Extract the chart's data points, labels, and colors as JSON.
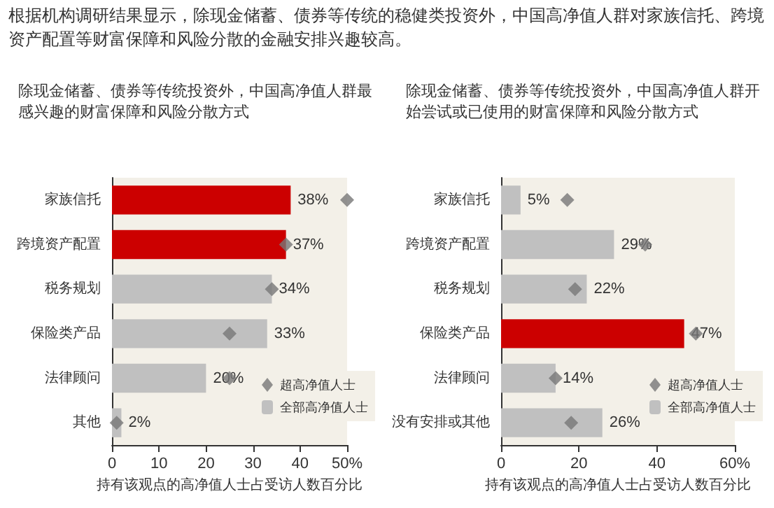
{
  "chart_data": [
    {
      "type": "bar",
      "orientation": "horizontal",
      "title": "除现金储蓄、债券等传统投资外，中国高净值人群最感兴趣的财富保障和风险分散方式",
      "annotations": [
        "根据机构调研结果显示，除现金储蓄、债券等传统的稳健类投资外，中国高净值人群对家族信托、跨境资产配置等财富保障和风险分散的金融安排兴趣较高。"
      ],
      "xlabel": "持有该观点的高净值人士占受访人数百分比",
      "categories": [
        "家族信托",
        "跨境资产配置",
        "税务规划",
        "保险类产品",
        "法律顾问",
        "其他"
      ],
      "series": [
        {
          "name": "超高净值人士",
          "type": "scatter",
          "color": "#777777",
          "x": [
            "家族信托",
            "跨境资产配置",
            "税务规划",
            "保险类产品",
            "法律顾问",
            "其他"
          ],
          "values": [
            50,
            37,
            34,
            25,
            25,
            1
          ]
        },
        {
          "name": "全部高净值人士",
          "type": "bar",
          "color": "#c0c0c0",
          "colors": [
            "#cc0000",
            "#cc0000",
            "#c0c0c0",
            "#c0c0c0",
            "#c0c0c0",
            "#c0c0c0"
          ],
          "values": [
            38,
            37,
            34,
            33,
            20,
            2
          ],
          "value_labels": [
            "38%",
            "37%",
            "34%",
            "33%",
            "20%",
            "2%"
          ]
        }
      ],
      "marker": "diamond",
      "xlim": [
        0,
        50
      ],
      "xticks": [
        0,
        10,
        20,
        30,
        40,
        {
          "value": 50,
          "label": "50%"
        }
      ],
      "grid": false,
      "legend": "bottom right"
    },
    {
      "type": "bar",
      "orientation": "horizontal",
      "title": "除现金储蓄、债券等传统投资外，中国高净值人群开始尝试或已使用的财富保障和风险分散方式",
      "xlabel": "持有该观点的高净值人士占受访人数百分比",
      "categories": [
        "家族信托",
        "跨境资产配置",
        "税务规划",
        "保险类产品",
        "法律顾问",
        "没有安排或其他"
      ],
      "series": [
        {
          "name": "超高净值人士",
          "type": "scatter",
          "color": "#777777",
          "x": [
            "家族信托",
            "跨境资产配置",
            "税务规划",
            "保险类产品",
            "法律顾问",
            "没有安排或其他"
          ],
          "values": [
            17,
            37,
            19,
            50,
            14,
            18
          ]
        },
        {
          "name": "全部高净值人士",
          "type": "bar",
          "color": "#c0c0c0",
          "colors": [
            "#c0c0c0",
            "#c0c0c0",
            "#c0c0c0",
            "#cc0000",
            "#c0c0c0",
            "#c0c0c0"
          ],
          "values": [
            5,
            29,
            22,
            47,
            14,
            26
          ],
          "value_labels": [
            "5%",
            "29%",
            "22%",
            "47%",
            "14%",
            "26%"
          ]
        }
      ],
      "marker": "diamond",
      "xlim": [
        0,
        60
      ],
      "xticks": [
        0,
        20,
        40,
        {
          "value": 60,
          "label": "60%"
        }
      ],
      "grid": false,
      "legend": "bottom right"
    }
  ]
}
